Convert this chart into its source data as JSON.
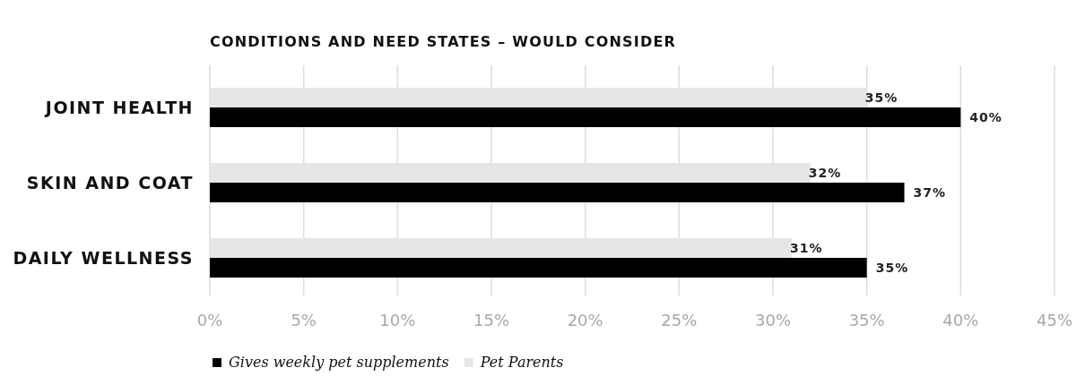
{
  "chart_data": {
    "type": "bar",
    "orientation": "horizontal",
    "title": "CONDITIONS AND NEED STATES – WOULD CONSIDER",
    "categories": [
      "JOINT HEALTH",
      "SKIN AND COAT",
      "DAILY WELLNESS"
    ],
    "series": [
      {
        "name": "Gives weekly pet supplements",
        "color": "#000000",
        "values": [
          40,
          37,
          35
        ],
        "value_labels": [
          "40%",
          "37%",
          "35%"
        ]
      },
      {
        "name": "Pet Parents",
        "color": "#e6e6e6",
        "values": [
          35,
          32,
          31
        ],
        "value_labels": [
          "35%",
          "32%",
          "31%"
        ]
      }
    ],
    "xlim": [
      0,
      45
    ],
    "xticks": [
      {
        "value": 0,
        "label": "0%"
      },
      {
        "value": 5,
        "label": "5%"
      },
      {
        "value": 10,
        "label": "10%"
      },
      {
        "value": 15,
        "label": "15%"
      },
      {
        "value": 20,
        "label": "20%"
      },
      {
        "value": 25,
        "label": "25%"
      },
      {
        "value": 30,
        "label": "30%"
      },
      {
        "value": 35,
        "label": "35%"
      },
      {
        "value": 40,
        "label": "40%"
      },
      {
        "value": 45,
        "label": "45%"
      }
    ],
    "grid": "x",
    "legend": "bottom left"
  }
}
